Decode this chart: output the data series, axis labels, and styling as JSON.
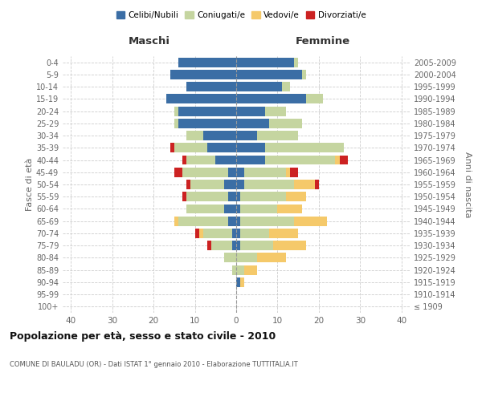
{
  "age_groups": [
    "100+",
    "95-99",
    "90-94",
    "85-89",
    "80-84",
    "75-79",
    "70-74",
    "65-69",
    "60-64",
    "55-59",
    "50-54",
    "45-49",
    "40-44",
    "35-39",
    "30-34",
    "25-29",
    "20-24",
    "15-19",
    "10-14",
    "5-9",
    "0-4"
  ],
  "birth_years": [
    "≤ 1909",
    "1910-1914",
    "1915-1919",
    "1920-1924",
    "1925-1929",
    "1930-1934",
    "1935-1939",
    "1940-1944",
    "1945-1949",
    "1950-1954",
    "1955-1959",
    "1960-1964",
    "1965-1969",
    "1970-1974",
    "1975-1979",
    "1980-1984",
    "1985-1989",
    "1990-1994",
    "1995-1999",
    "2000-2004",
    "2005-2009"
  ],
  "males": {
    "celibe": [
      0,
      0,
      0,
      0,
      0,
      1,
      1,
      2,
      3,
      2,
      3,
      2,
      5,
      7,
      8,
      14,
      14,
      17,
      12,
      16,
      14
    ],
    "coniugato": [
      0,
      0,
      0,
      1,
      3,
      5,
      7,
      12,
      9,
      10,
      8,
      11,
      7,
      8,
      4,
      1,
      1,
      0,
      0,
      0,
      0
    ],
    "vedovo": [
      0,
      0,
      0,
      0,
      0,
      0,
      1,
      1,
      0,
      0,
      0,
      0,
      0,
      0,
      0,
      0,
      0,
      0,
      0,
      0,
      0
    ],
    "divorziato": [
      0,
      0,
      0,
      0,
      0,
      1,
      1,
      0,
      0,
      1,
      1,
      2,
      1,
      1,
      0,
      0,
      0,
      0,
      0,
      0,
      0
    ]
  },
  "females": {
    "nubile": [
      0,
      0,
      1,
      0,
      0,
      1,
      1,
      1,
      1,
      1,
      2,
      2,
      7,
      7,
      5,
      8,
      7,
      17,
      11,
      16,
      14
    ],
    "coniugata": [
      0,
      0,
      0,
      2,
      5,
      8,
      7,
      13,
      9,
      11,
      12,
      10,
      17,
      19,
      10,
      8,
      5,
      4,
      2,
      1,
      1
    ],
    "vedova": [
      0,
      0,
      1,
      3,
      7,
      8,
      7,
      8,
      6,
      5,
      5,
      1,
      1,
      0,
      0,
      0,
      0,
      0,
      0,
      0,
      0
    ],
    "divorziata": [
      0,
      0,
      0,
      0,
      0,
      0,
      0,
      0,
      0,
      0,
      1,
      2,
      2,
      0,
      0,
      0,
      0,
      0,
      0,
      0,
      0
    ]
  },
  "colors": {
    "celibe": "#3B6EA5",
    "coniugato": "#C5D5A0",
    "vedovo": "#F5C96A",
    "divorziato": "#CC2222"
  },
  "xlim": 42,
  "title": "Popolazione per età, sesso e stato civile - 2010",
  "subtitle": "COMUNE DI BAULADU (OR) - Dati ISTAT 1° gennaio 2010 - Elaborazione TUTTITALIA.IT",
  "xlabel_left": "Maschi",
  "xlabel_right": "Femmine",
  "ylabel_left": "Fasce di età",
  "ylabel_right": "Anni di nascita",
  "legend_labels": [
    "Celibi/Nubili",
    "Coniugati/e",
    "Vedovi/e",
    "Divorziati/e"
  ],
  "bg_color": "#FFFFFF",
  "grid_color": "#CCCCCC"
}
